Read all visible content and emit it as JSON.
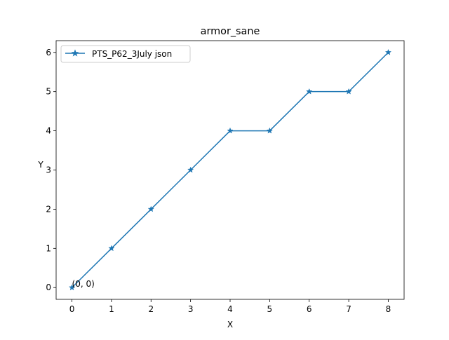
{
  "chart_data": {
    "type": "line",
    "title": "armor_sane",
    "xlabel": "X",
    "ylabel": "Y",
    "xlim": [
      -0.4,
      8.4
    ],
    "ylim": [
      -0.3,
      6.3
    ],
    "xticks": [
      0,
      1,
      2,
      3,
      4,
      5,
      6,
      7,
      8
    ],
    "yticks": [
      0,
      1,
      2,
      3,
      4,
      5,
      6
    ],
    "grid": false,
    "legend_position": "upper-left",
    "series": [
      {
        "name": "PTS_P62_3July json",
        "color": "#1f77b4",
        "marker": "star",
        "x": [
          0,
          1,
          2,
          3,
          4,
          5,
          6,
          7,
          8
        ],
        "y": [
          0,
          1,
          2,
          3,
          4,
          4,
          5,
          5,
          6
        ]
      }
    ],
    "annotations": [
      {
        "text": "(0, 0)",
        "x": 0,
        "y": 0
      }
    ]
  }
}
